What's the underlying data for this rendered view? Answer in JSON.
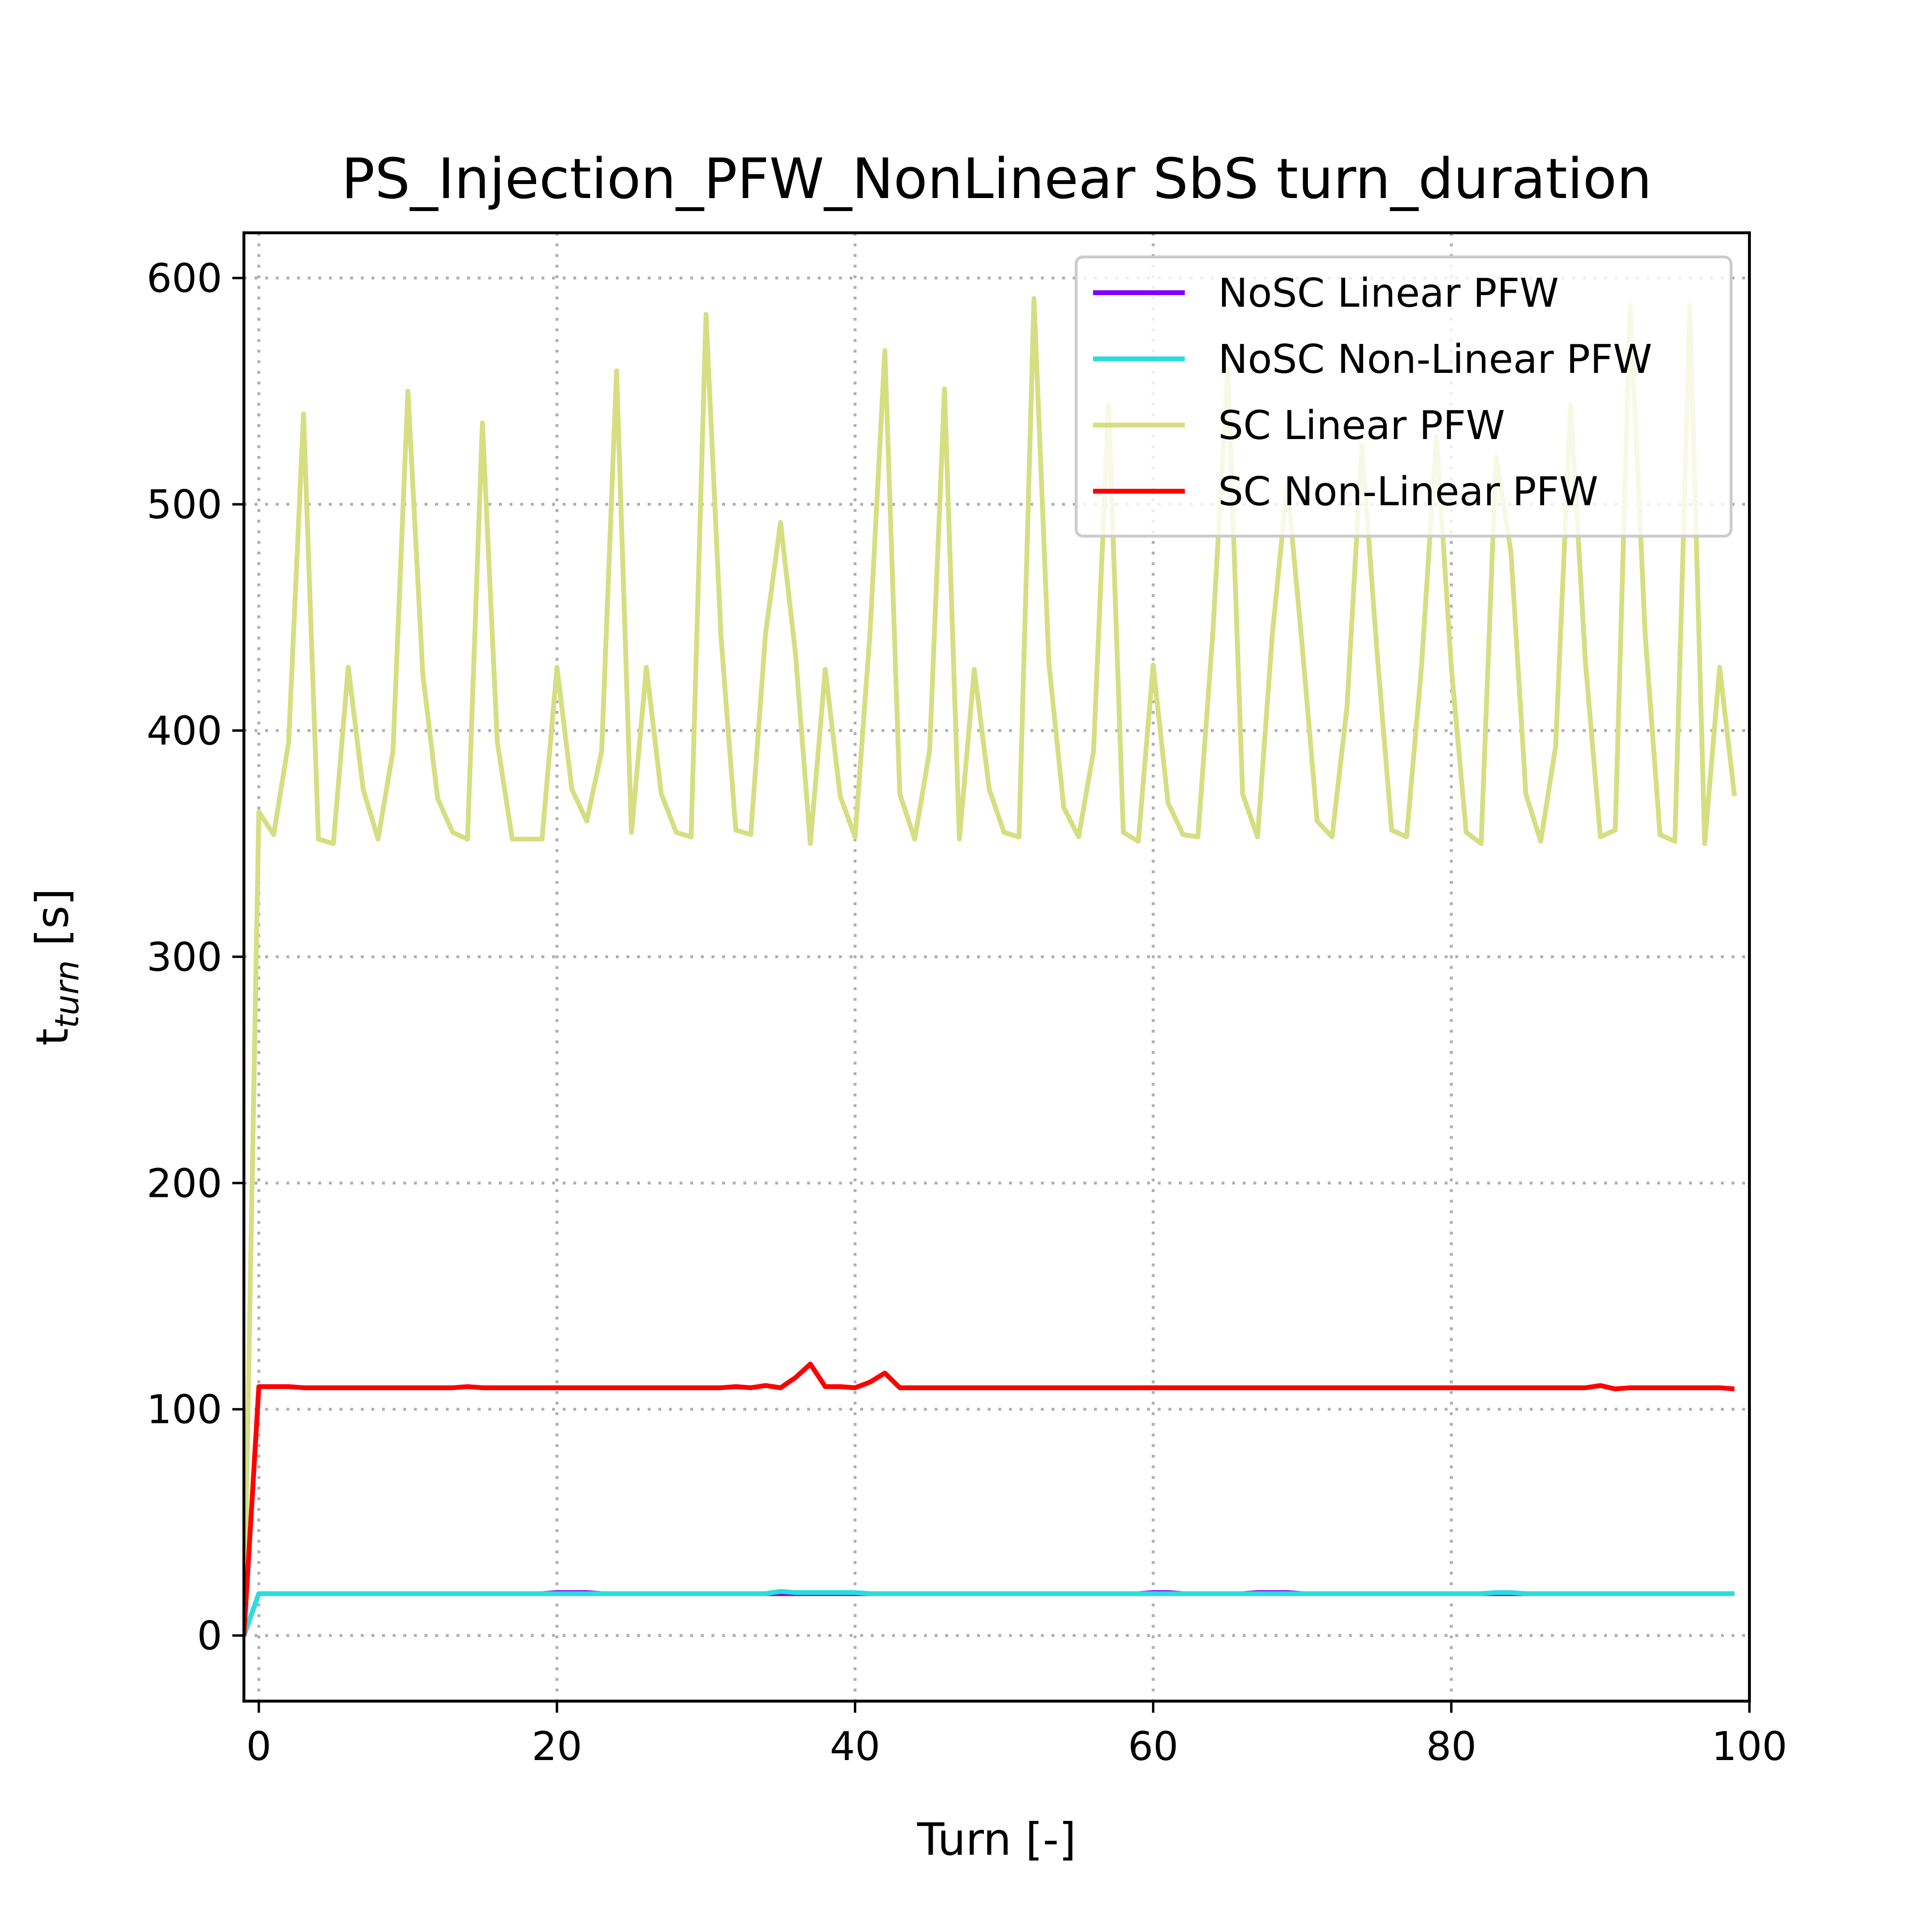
{
  "chart_data": {
    "type": "line",
    "title": "PS_Injection_PFW_NonLinear SbS turn_duration",
    "xlabel": "Turn [-]",
    "ylabel": "t",
    "ylabel_sub": "turn",
    "ylabel_unit": " [s]",
    "xlim": [
      -1,
      100
    ],
    "ylim": [
      -29,
      620
    ],
    "xticks": [
      0,
      20,
      40,
      60,
      80,
      100
    ],
    "yticks": [
      0,
      100,
      200,
      300,
      400,
      500,
      600
    ],
    "grid": true,
    "legend_position": "top-right",
    "x_start": -1,
    "series": [
      {
        "name": "NoSC Linear PFW",
        "color": "#8000ff",
        "values": [
          0,
          18.5,
          18.5,
          18.5,
          18.5,
          18.5,
          18.5,
          18.5,
          18.5,
          18.5,
          18.5,
          18.5,
          18.5,
          18.5,
          18.5,
          18.5,
          18.5,
          18.5,
          18.5,
          18.5,
          18.5,
          19,
          19,
          19,
          18.5,
          18.5,
          18.5,
          18.5,
          18.5,
          18.5,
          18.5,
          18.5,
          18.5,
          18.5,
          18.5,
          18.5,
          18.5,
          18.5,
          18.5,
          18.5,
          18.5,
          18.5,
          18.5,
          18.5,
          18.5,
          18.5,
          18.5,
          18.5,
          18.5,
          18.5,
          18.5,
          18.5,
          18.5,
          18.5,
          18.5,
          18.5,
          18.5,
          18.5,
          18.5,
          18.5,
          18.5,
          19,
          19,
          18.5,
          18.5,
          18.5,
          18.5,
          18.5,
          19,
          19,
          19,
          18.5,
          18.5,
          18.5,
          18.5,
          18.5,
          18.5,
          18.5,
          18.5,
          18.5,
          18.5,
          18.5,
          18.5,
          18.5,
          18.5,
          18.5,
          18.5,
          18.5,
          18.5,
          18.5,
          18.5,
          18.5,
          18.5,
          18.5,
          18.5,
          18.5,
          18.5,
          18.5,
          18.5,
          18.5,
          18.5
        ]
      },
      {
        "name": "NoSC Non-Linear PFW",
        "color": "#2adddd",
        "values": [
          0,
          18.5,
          18.5,
          18.5,
          18.5,
          18.5,
          18.5,
          18.5,
          18.5,
          18.5,
          18.5,
          18.5,
          18.5,
          18.5,
          18.5,
          18.5,
          18.5,
          18.5,
          18.5,
          18.5,
          18.5,
          18.5,
          18.5,
          18.5,
          18.5,
          18.5,
          18.5,
          18.5,
          18.5,
          18.5,
          18.5,
          18.5,
          18.5,
          18.5,
          18.5,
          18.5,
          19.5,
          19,
          19,
          19,
          19,
          19,
          18.5,
          18.5,
          18.5,
          18.5,
          18.5,
          18.5,
          18.5,
          18.5,
          18.5,
          18.5,
          18.5,
          18.5,
          18.5,
          18.5,
          18.5,
          18.5,
          18.5,
          18.5,
          18.5,
          18.5,
          18.5,
          18.5,
          18.5,
          18.5,
          18.5,
          18.5,
          18.5,
          18.5,
          18.5,
          18.5,
          18.5,
          18.5,
          18.5,
          18.5,
          18.5,
          18.5,
          18.5,
          18.5,
          18.5,
          18.5,
          18.5,
          18.5,
          19,
          19,
          18.5,
          18.5,
          18.5,
          18.5,
          18.5,
          18.5,
          18.5,
          18.5,
          18.5,
          18.5,
          18.5,
          18.5,
          18.5,
          18.5,
          18.5
        ]
      },
      {
        "name": "SC Linear PFW",
        "color": "#d4df82",
        "values": [
          0,
          364,
          354,
          395,
          540,
          352,
          350,
          428,
          374,
          352,
          391,
          550,
          425,
          370,
          355,
          352,
          536,
          395,
          352,
          352,
          352,
          428,
          374,
          360,
          391,
          559,
          355,
          428,
          372,
          355,
          353,
          584,
          442,
          356,
          354,
          443,
          492,
          434,
          350,
          427,
          371,
          353,
          443,
          568,
          372,
          352,
          391,
          551,
          352,
          427,
          374,
          355,
          353,
          591,
          430,
          366,
          353,
          391,
          544,
          355,
          351,
          429,
          368,
          354,
          353,
          443,
          560,
          372,
          353,
          443,
          509,
          437,
          360,
          353,
          410,
          526,
          436,
          356,
          353,
          428,
          530,
          428,
          355,
          350,
          521,
          479,
          372,
          351,
          393,
          544,
          430,
          353,
          356,
          588,
          443,
          354,
          351,
          588,
          350,
          428,
          371
        ]
      },
      {
        "name": "SC Non-Linear PFW",
        "color": "#ff0000",
        "values": [
          0,
          110,
          110,
          110,
          109.5,
          109.5,
          109.5,
          109.5,
          109.5,
          109.5,
          109.5,
          109.5,
          109.5,
          109.5,
          109.5,
          110,
          109.5,
          109.5,
          109.5,
          109.5,
          109.5,
          109.5,
          109.5,
          109.5,
          109.5,
          109.5,
          109.5,
          109.5,
          109.5,
          109.5,
          109.5,
          109.5,
          109.5,
          110,
          109.5,
          110.5,
          109.5,
          114,
          120,
          110,
          110,
          109.5,
          112,
          116,
          109.5,
          109.5,
          109.5,
          109.5,
          109.5,
          109.5,
          109.5,
          109.5,
          109.5,
          109.5,
          109.5,
          109.5,
          109.5,
          109.5,
          109.5,
          109.5,
          109.5,
          109.5,
          109.5,
          109.5,
          109.5,
          109.5,
          109.5,
          109.5,
          109.5,
          109.5,
          109.5,
          109.5,
          109.5,
          109.5,
          109.5,
          109.5,
          109.5,
          109.5,
          109.5,
          109.5,
          109.5,
          109.5,
          109.5,
          109.5,
          109.5,
          109.5,
          109.5,
          109.5,
          109.5,
          109.5,
          109.5,
          110.5,
          109,
          109.5,
          109.5,
          109.5,
          109.5,
          109.5,
          109.5,
          109.5,
          109
        ]
      }
    ]
  }
}
